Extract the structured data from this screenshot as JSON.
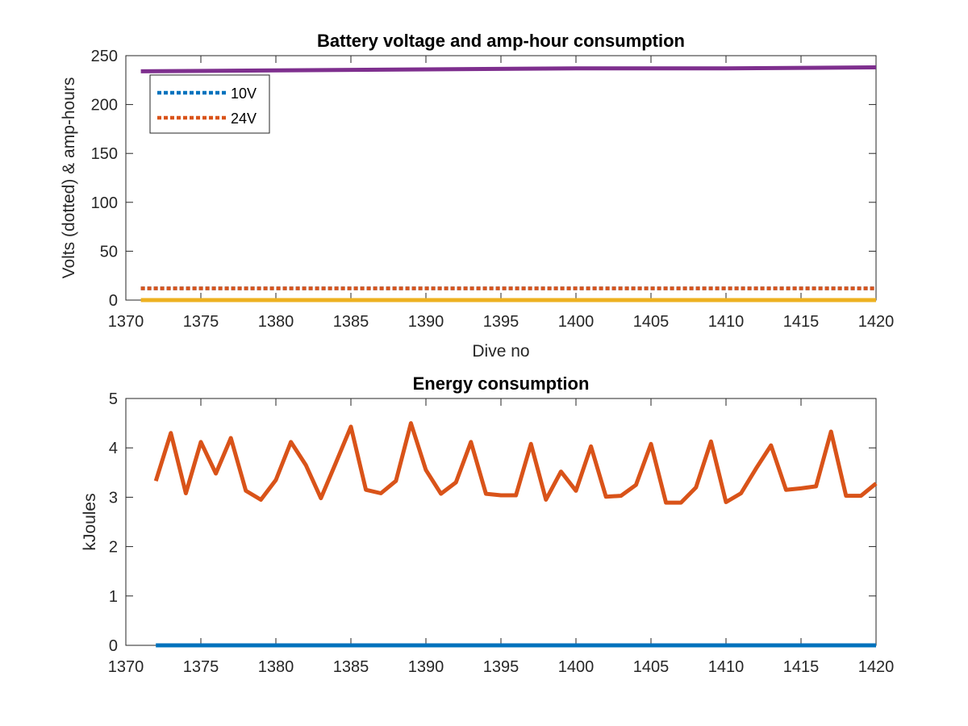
{
  "chart_data": [
    {
      "type": "line",
      "title": "Battery voltage and amp-hour consumption",
      "xlabel": "Dive no",
      "ylabel": "Volts (dotted) & amp-hours",
      "xlim": [
        1370,
        1420
      ],
      "ylim": [
        0,
        250
      ],
      "xticks": [
        1370,
        1375,
        1380,
        1385,
        1390,
        1395,
        1400,
        1405,
        1410,
        1415,
        1420
      ],
      "yticks": [
        0,
        50,
        100,
        150,
        200,
        250
      ],
      "grid": false,
      "legend": {
        "location": "top-left",
        "entries": [
          "10V",
          "24V"
        ]
      },
      "series": [
        {
          "name": "10V",
          "style": "dotted",
          "color": "#0072BD",
          "x": [
            1371,
            1420
          ],
          "y": [
            12,
            12
          ]
        },
        {
          "name": "24V",
          "style": "dotted",
          "color": "#D95319",
          "x": [
            1371,
            1420
          ],
          "y": [
            12,
            12
          ]
        },
        {
          "style": "solid",
          "color": "#EDB120",
          "x": [
            1371,
            1420
          ],
          "y": [
            0,
            0
          ]
        },
        {
          "style": "solid",
          "color": "#7E2F8E",
          "x": [
            1371,
            1380,
            1390,
            1400,
            1410,
            1420
          ],
          "y": [
            234,
            235,
            236,
            237,
            237,
            238
          ]
        }
      ]
    },
    {
      "type": "line",
      "title": "Energy consumption",
      "xlabel": "",
      "ylabel": "kJoules",
      "xlim": [
        1370,
        1420
      ],
      "ylim": [
        0,
        5
      ],
      "xticks": [
        1370,
        1375,
        1380,
        1385,
        1390,
        1395,
        1400,
        1405,
        1410,
        1415,
        1420
      ],
      "yticks": [
        0,
        1,
        2,
        3,
        4,
        5
      ],
      "grid": false,
      "series": [
        {
          "style": "solid",
          "color": "#0072BD",
          "x": [
            1372,
            1420
          ],
          "y": [
            0,
            0
          ]
        },
        {
          "style": "solid",
          "color": "#D95319",
          "x": [
            1372,
            1373,
            1374,
            1375,
            1376,
            1377,
            1378,
            1379,
            1380,
            1381,
            1382,
            1383,
            1384,
            1385,
            1386,
            1387,
            1388,
            1389,
            1390,
            1391,
            1392,
            1393,
            1394,
            1395,
            1396,
            1397,
            1398,
            1399,
            1400,
            1401,
            1402,
            1403,
            1404,
            1405,
            1406,
            1407,
            1408,
            1409,
            1410,
            1411,
            1412,
            1413,
            1414,
            1415,
            1416,
            1417,
            1418,
            1419,
            1420
          ],
          "y": [
            3.33,
            4.3,
            3.08,
            4.12,
            3.48,
            4.2,
            3.13,
            2.95,
            3.35,
            4.12,
            3.65,
            2.98,
            3.7,
            4.43,
            3.15,
            3.08,
            3.33,
            4.5,
            3.55,
            3.07,
            3.3,
            4.12,
            3.07,
            3.04,
            3.04,
            4.08,
            2.95,
            3.52,
            3.13,
            4.03,
            3.01,
            3.03,
            3.25,
            4.08,
            2.89,
            2.89,
            3.2,
            4.13,
            2.9,
            3.08,
            3.58,
            4.05,
            3.15,
            3.18,
            3.22,
            4.33,
            3.03,
            3.03,
            3.28
          ]
        }
      ]
    }
  ]
}
